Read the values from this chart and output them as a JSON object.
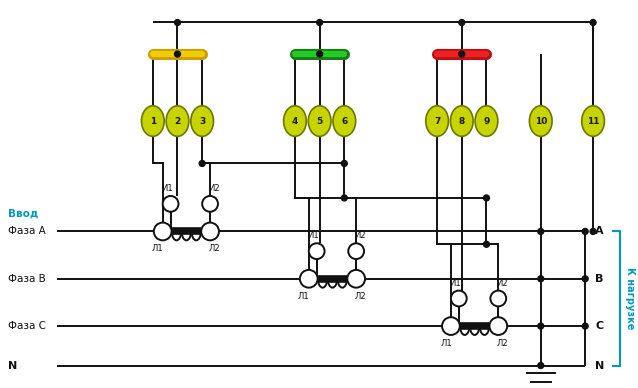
{
  "bg_color": "#ffffff",
  "fig_w": 6.38,
  "fig_h": 3.88,
  "dpi": 100,
  "line_color": "#1a1a1a",
  "terminal_numbers": [
    "1",
    "2",
    "3",
    "4",
    "5",
    "6",
    "7",
    "8",
    "9",
    "10",
    "11"
  ],
  "terminal_fill": "#c8d400",
  "terminal_border": "#7a8800",
  "bus_yellow_color1": "#d4aa00",
  "bus_yellow_color2": "#f0cc00",
  "bus_green_color1": "#1a7a1a",
  "bus_green_color2": "#22cc22",
  "bus_red_color1": "#bb1111",
  "bus_red_color2": "#ee2222",
  "cyan_color": "#0099bb",
  "text_color": "#111111"
}
